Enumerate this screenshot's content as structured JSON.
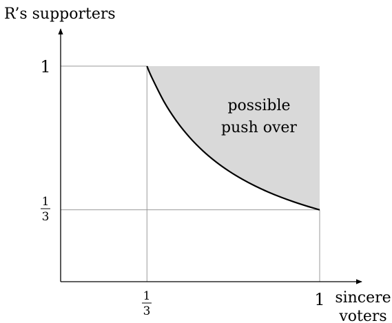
{
  "chart_data": {
    "type": "area",
    "ylabel": "R’s supporters",
    "xlabel": [
      "sincere",
      "voters"
    ],
    "xlim": [
      0,
      1
    ],
    "ylim": [
      0,
      1
    ],
    "grid": false,
    "x_ticks": [
      {
        "value": 0.3333,
        "label": {
          "num": "1",
          "den": "3"
        }
      },
      {
        "value": 1,
        "label": "1"
      }
    ],
    "y_ticks": [
      {
        "value": 0.3333,
        "label": {
          "num": "1",
          "den": "3"
        }
      },
      {
        "value": 1,
        "label": "1"
      }
    ],
    "curve": {
      "x": [
        0.3333,
        0.35,
        0.4,
        0.45,
        0.5,
        0.55,
        0.6,
        0.65,
        0.7,
        0.75,
        0.8,
        0.85,
        0.9,
        0.95,
        1.0
      ],
      "y": [
        1.0,
        0.9524,
        0.8333,
        0.7407,
        0.6667,
        0.6061,
        0.5556,
        0.5128,
        0.4762,
        0.4444,
        0.4167,
        0.3922,
        0.3704,
        0.3509,
        0.3333
      ]
    },
    "region_label": [
      "possible",
      "push over"
    ],
    "colors": {
      "region": "#d9d9d9",
      "curve": "#000000",
      "guides": "#999999"
    }
  }
}
